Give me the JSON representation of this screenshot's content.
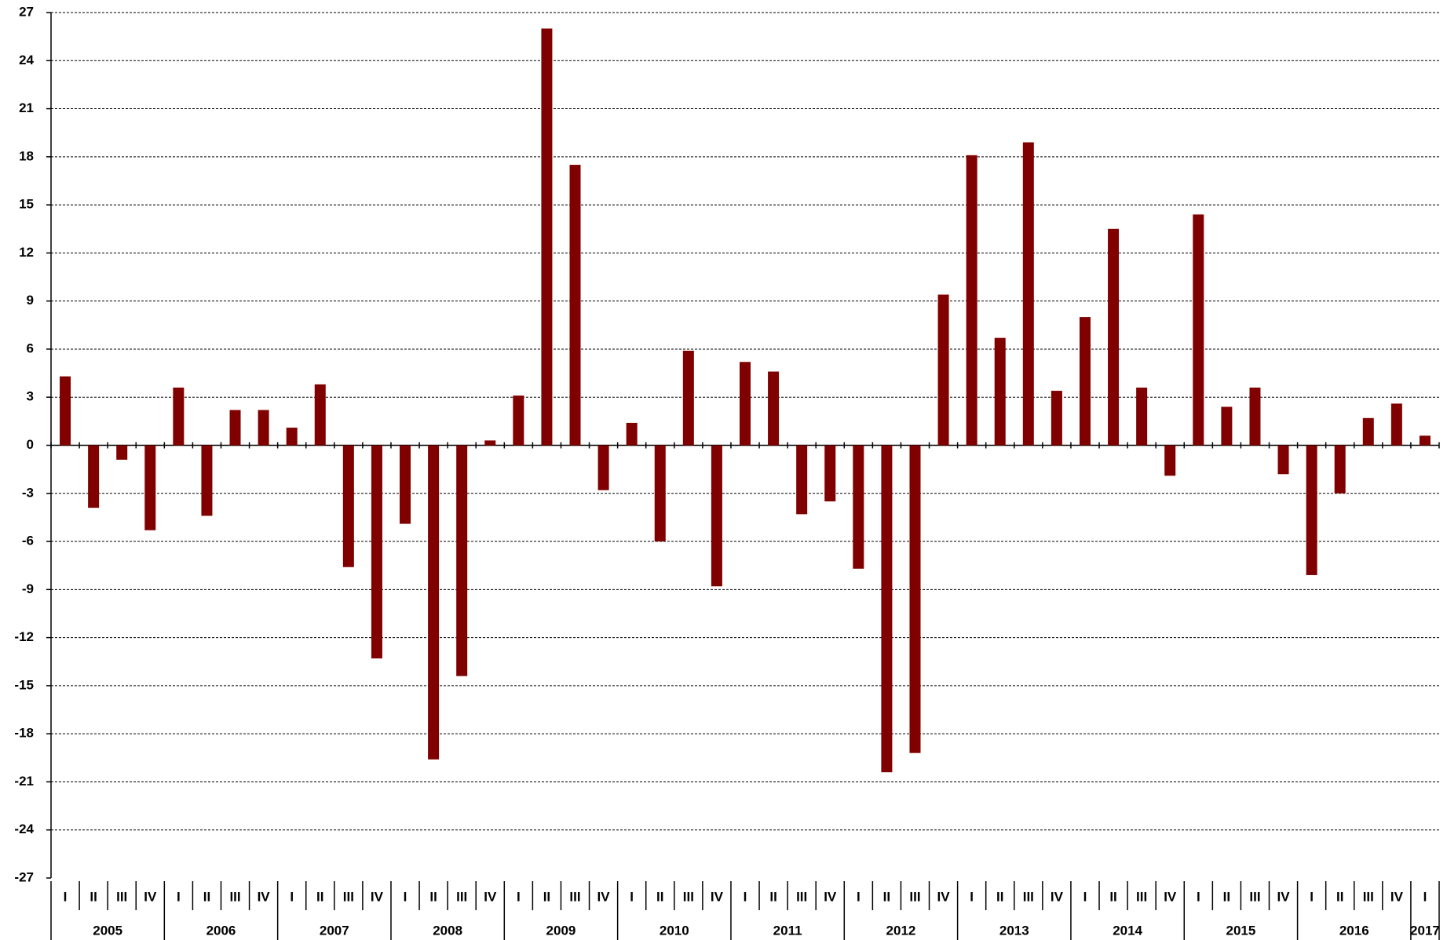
{
  "chart_data": {
    "type": "bar",
    "categories": [
      "I",
      "II",
      "III",
      "IV",
      "I",
      "II",
      "III",
      "IV",
      "I",
      "II",
      "III",
      "IV",
      "I",
      "II",
      "III",
      "IV",
      "I",
      "II",
      "III",
      "IV",
      "I",
      "II",
      "III",
      "IV",
      "I",
      "II",
      "III",
      "IV",
      "I",
      "II",
      "III",
      "IV",
      "I",
      "II",
      "III",
      "IV",
      "I",
      "II",
      "III",
      "IV",
      "I",
      "II",
      "III",
      "IV",
      "I",
      "II",
      "III",
      "IV",
      "I"
    ],
    "groups": [
      "2005",
      "2006",
      "2007",
      "2008",
      "2009",
      "2010",
      "2011",
      "2012",
      "2013",
      "2014",
      "2015",
      "2016",
      "2017"
    ],
    "values": [
      4.3,
      -3.9,
      -0.9,
      -5.3,
      3.6,
      -4.4,
      2.2,
      2.2,
      1.1,
      3.8,
      -7.6,
      -13.3,
      -4.9,
      -19.6,
      -14.4,
      0.3,
      3.1,
      26.0,
      17.5,
      -2.8,
      1.4,
      -6.0,
      5.9,
      -8.8,
      5.2,
      4.6,
      -4.3,
      -3.5,
      -7.7,
      -20.4,
      -19.2,
      9.4,
      18.1,
      6.7,
      18.9,
      3.4,
      8.0,
      13.5,
      3.6,
      -1.9,
      14.4,
      2.4,
      3.6,
      -1.8,
      -8.1,
      -3.0,
      1.7,
      2.6,
      0.6
    ],
    "color": "#800000",
    "ylim": [
      -27,
      27
    ],
    "yticks": [
      -27,
      -24,
      -21,
      -18,
      -15,
      -12,
      -9,
      -6,
      -3,
      0,
      3,
      6,
      9,
      12,
      15,
      18,
      21,
      24,
      27
    ],
    "grid": true
  }
}
